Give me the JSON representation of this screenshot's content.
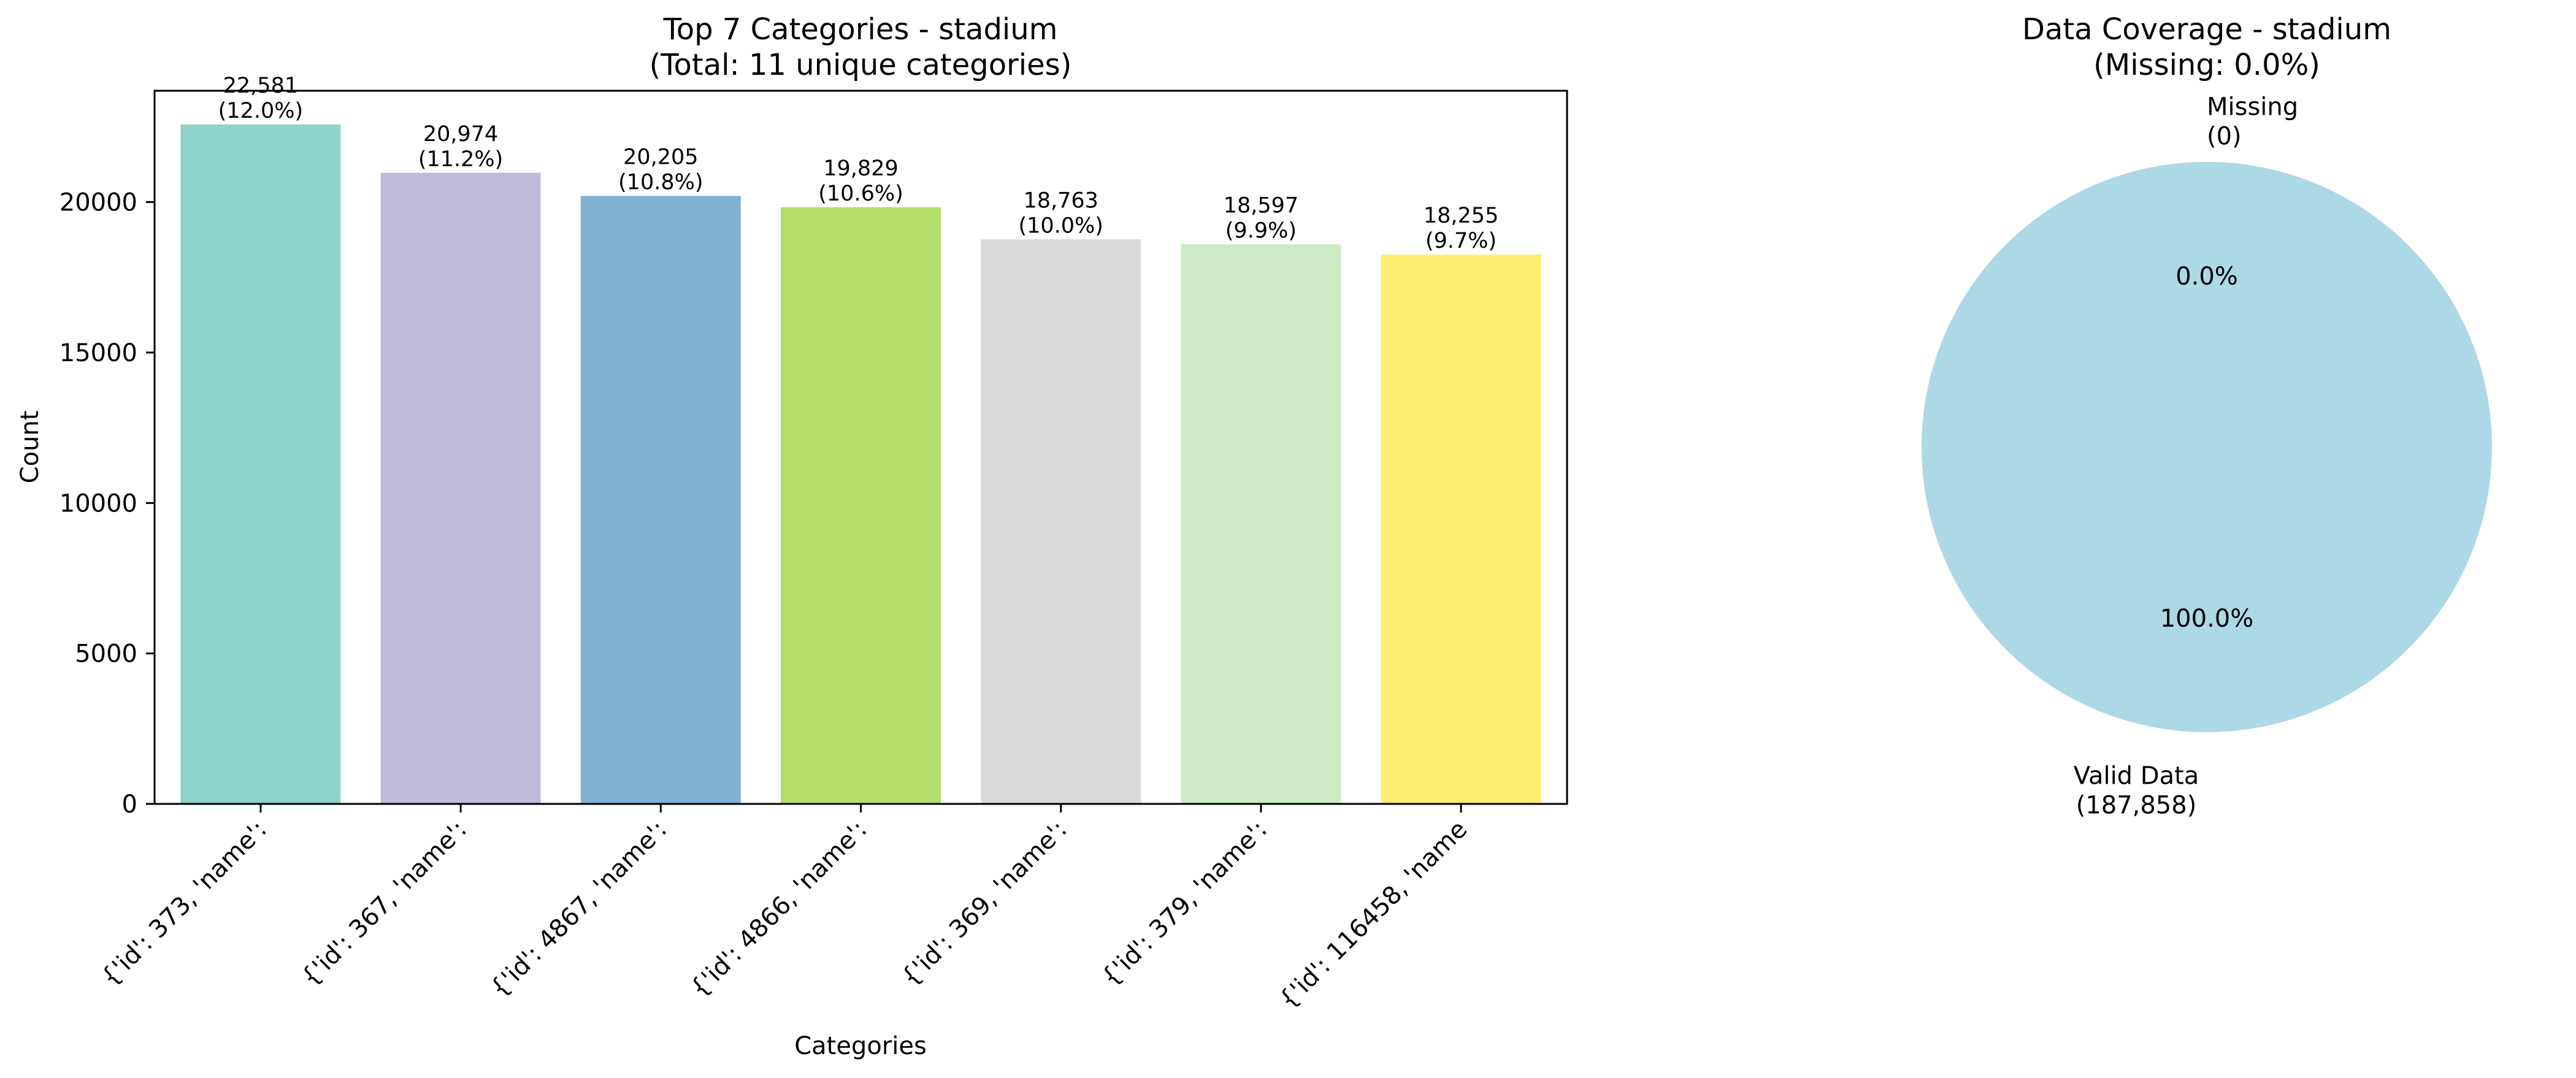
{
  "chart_data": [
    {
      "type": "bar",
      "title_line1": "Top 7 Categories - stadium",
      "title_line2": "(Total: 11 unique categories)",
      "xlabel": "Categories",
      "ylabel": "Count",
      "ylim": [
        0,
        23700
      ],
      "yticks": [
        0,
        5000,
        10000,
        15000,
        20000
      ],
      "grid": false,
      "categories": [
        "{'id': 373, 'name':",
        "{'id': 367, 'name':",
        "{'id': 4867, 'name':",
        "{'id': 4866, 'name':",
        "{'id': 369, 'name':",
        "{'id': 379, 'name':",
        "{'id': 116458, 'name"
      ],
      "values": [
        22581,
        20974,
        20205,
        19829,
        18763,
        18597,
        18255
      ],
      "value_labels": [
        "22,581",
        "20,974",
        "20,205",
        "19,829",
        "18,763",
        "18,597",
        "18,255"
      ],
      "percent_labels": [
        "(12.0%)",
        "(11.2%)",
        "(10.8%)",
        "(10.6%)",
        "(10.0%)",
        "(9.9%)",
        "(9.7%)"
      ],
      "colors": [
        "#8dd3c7",
        "#bebada",
        "#80b1d3",
        "#b3de69",
        "#d9d9d9",
        "#ccebc5",
        "#ffed6f"
      ]
    },
    {
      "type": "pie",
      "title_line1": "Data Coverage - stadium",
      "title_line2": "(Missing: 0.0%)",
      "slices": [
        {
          "label_line1": "Missing",
          "label_line2": "(0)",
          "value": 0,
          "pct_label": "0.0%",
          "color": "#ff6b6b"
        },
        {
          "label_line1": "Valid Data",
          "label_line2": "(187,858)",
          "value": 187858,
          "pct_label": "100.0%",
          "color": "#add8e6"
        }
      ]
    }
  ]
}
